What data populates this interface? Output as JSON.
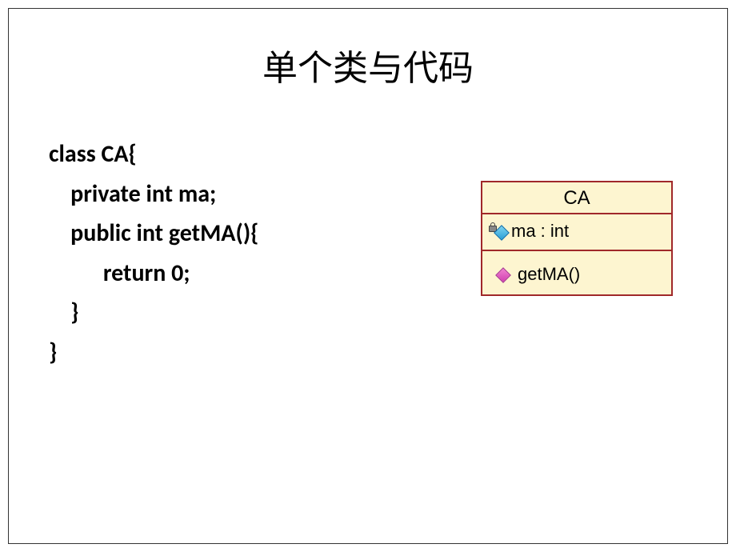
{
  "slide": {
    "title": "单个类与代码",
    "code": {
      "line1": "class CA{",
      "line2": "    private int ma;",
      "line3": "    public int getMA(){",
      "line4": "          return 0;",
      "line5": "    }",
      "line6": "}"
    },
    "uml": {
      "className": "CA",
      "attribute": "ma : int",
      "method": "getMA()"
    },
    "colors": {
      "border": "#a0282a",
      "cell_bg": "#fdf5d0",
      "attr_diamond": "#2a9fd6",
      "method_diamond": "#d040b0"
    }
  }
}
